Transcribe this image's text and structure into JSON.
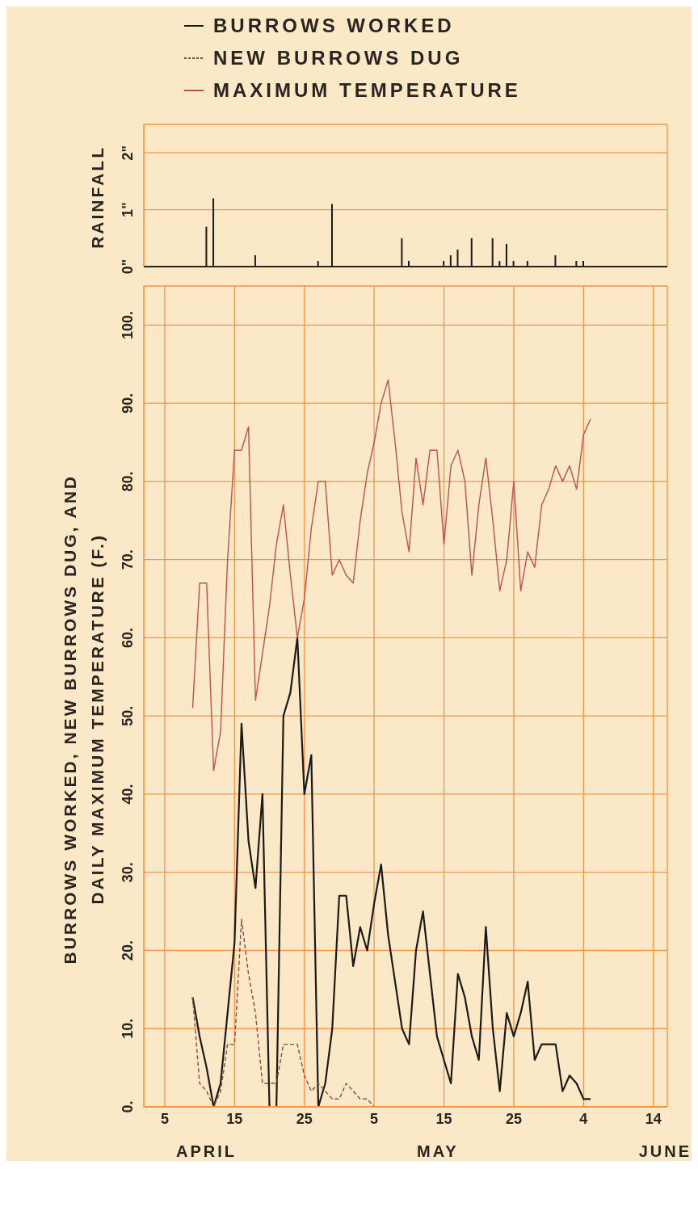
{
  "chart_data": [
    {
      "type": "bar",
      "ylabel": "RAINFALL",
      "color": "#1a1a1a",
      "tick_labels": "y",
      "grid": true,
      "x": [
        "--04-11",
        "--04-12",
        "--04-18",
        "--04-27",
        "--04-29",
        "--05-09",
        "--05-10",
        "--05-15",
        "--05-16",
        "--05-17",
        "--05-19",
        "--05-22",
        "--05-23",
        "--05-24",
        "--05-25",
        "--05-27",
        "--05-31",
        "--06-03",
        "--06-04"
      ],
      "values": [
        0.7,
        1.2,
        0.2,
        0.1,
        1.1,
        0.5,
        0.1,
        0.1,
        0.2,
        0.3,
        0.5,
        0.5,
        0.1,
        0.4,
        0.1,
        0.1,
        0.2,
        0.1,
        0.1
      ],
      "xlim": [
        "--04-02",
        "--06-16"
      ],
      "ylim": [
        0,
        2.5
      ],
      "yticks": [
        {
          "value": 0,
          "label": "0\""
        },
        {
          "value": 1,
          "label": "1\""
        },
        {
          "value": 2,
          "label": "2\""
        }
      ]
    },
    {
      "type": "line",
      "ylabel": "BURROWS WORKED, NEW BURROWS DUG, AND\nDAILY MAXIMUM TEMPERATURE (F.)",
      "legend": "top",
      "grid": true,
      "marker": "none",
      "x": [
        "--04-09",
        "--04-10",
        "--04-11",
        "--04-12",
        "--04-13",
        "--04-14",
        "--04-15",
        "--04-16",
        "--04-17",
        "--04-18",
        "--04-19",
        "--04-20",
        "--04-21",
        "--04-22",
        "--04-23",
        "--04-24",
        "--04-25",
        "--04-26",
        "--04-27",
        "--04-28",
        "--04-29",
        "--04-30",
        "--05-01",
        "--05-02",
        "--05-03",
        "--05-04",
        "--05-05",
        "--05-06",
        "--05-07",
        "--05-08",
        "--05-09",
        "--05-10",
        "--05-11",
        "--05-12",
        "--05-13",
        "--05-14",
        "--05-15",
        "--05-16",
        "--05-17",
        "--05-18",
        "--05-19",
        "--05-20",
        "--05-21",
        "--05-22",
        "--05-23",
        "--05-24",
        "--05-25",
        "--05-26",
        "--05-27",
        "--05-28",
        "--05-29",
        "--05-30",
        "--05-31",
        "--06-01",
        "--06-02",
        "--06-03",
        "--06-04",
        "--06-05"
      ],
      "series": [
        {
          "name": "BURROWS WORKED",
          "color": "#1a1a1a",
          "line_style": "solid",
          "values": [
            14,
            9,
            5,
            0,
            3,
            12,
            21,
            49,
            34,
            28,
            40,
            0,
            0,
            50,
            53,
            60,
            40,
            45,
            0,
            3,
            10,
            27,
            27,
            18,
            23,
            20,
            26,
            31,
            22,
            16,
            10,
            8,
            20,
            25,
            17,
            9,
            6,
            3,
            17,
            14,
            9,
            6,
            23,
            10,
            2,
            12,
            9,
            12,
            16,
            6,
            8,
            8,
            8,
            2,
            4,
            3,
            1,
            1
          ]
        },
        {
          "name": "NEW BURROWS DUG",
          "color": "#8a4b3c",
          "line_style": "dashed",
          "x": [
            "--04-09",
            "--04-10",
            "--04-11",
            "--04-12",
            "--04-13",
            "--04-14",
            "--04-15",
            "--04-16",
            "--04-17",
            "--04-18",
            "--04-19",
            "--04-20",
            "--04-21",
            "--04-22",
            "--04-23",
            "--04-24",
            "--04-25",
            "--04-26",
            "--04-27",
            "--04-28",
            "--04-29",
            "--04-30",
            "--05-01",
            "--05-02",
            "--05-03",
            "--05-04",
            "--05-05"
          ],
          "values": [
            14,
            3,
            2,
            0,
            2,
            8,
            8,
            24,
            17,
            12,
            3,
            3,
            3,
            8,
            8,
            8,
            4,
            2,
            3,
            2,
            1,
            1,
            3,
            2,
            1,
            1,
            0
          ]
        },
        {
          "name": "MAXIMUM TEMPERATURE",
          "color": "#c0504d",
          "line_style": "solid",
          "values": [
            51,
            67,
            67,
            43,
            48,
            70,
            84,
            84,
            87,
            52,
            58,
            64,
            72,
            77,
            68,
            60,
            65,
            74,
            80,
            80,
            68,
            70,
            68,
            67,
            75,
            81,
            85,
            90,
            93,
            85,
            76,
            71,
            83,
            77,
            84,
            84,
            72,
            82,
            84,
            80,
            68,
            77,
            83,
            75,
            66,
            70,
            80,
            66,
            71,
            69,
            77,
            79,
            82,
            80,
            82,
            79,
            86,
            88
          ]
        }
      ],
      "xlim": [
        "--04-02",
        "--06-16"
      ],
      "xticks": [
        {
          "value": "--04-05",
          "label": "5"
        },
        {
          "value": "--04-15",
          "label": "15"
        },
        {
          "value": "--04-25",
          "label": "25"
        },
        {
          "value": "--05-05",
          "label": "5"
        },
        {
          "value": "--05-15",
          "label": "15"
        },
        {
          "value": "--05-25",
          "label": "25"
        },
        {
          "value": "--06-04",
          "label": "4"
        },
        {
          "value": "--06-14",
          "label": "14"
        }
      ],
      "ylim": [
        0,
        105
      ],
      "yticks": [
        {
          "value": 0,
          "label": "0."
        },
        {
          "value": 10,
          "label": "10."
        },
        {
          "value": 20,
          "label": "20."
        },
        {
          "value": 30,
          "label": "30."
        },
        {
          "value": 40,
          "label": "40."
        },
        {
          "value": 50,
          "label": "50."
        },
        {
          "value": 60,
          "label": "60."
        },
        {
          "value": 70,
          "label": "70."
        },
        {
          "value": 80,
          "label": "80."
        },
        {
          "value": 90,
          "label": "90."
        },
        {
          "value": 100,
          "label": "100."
        }
      ],
      "annotations": [
        "APRIL",
        "MAY",
        "JUNE"
      ]
    }
  ]
}
